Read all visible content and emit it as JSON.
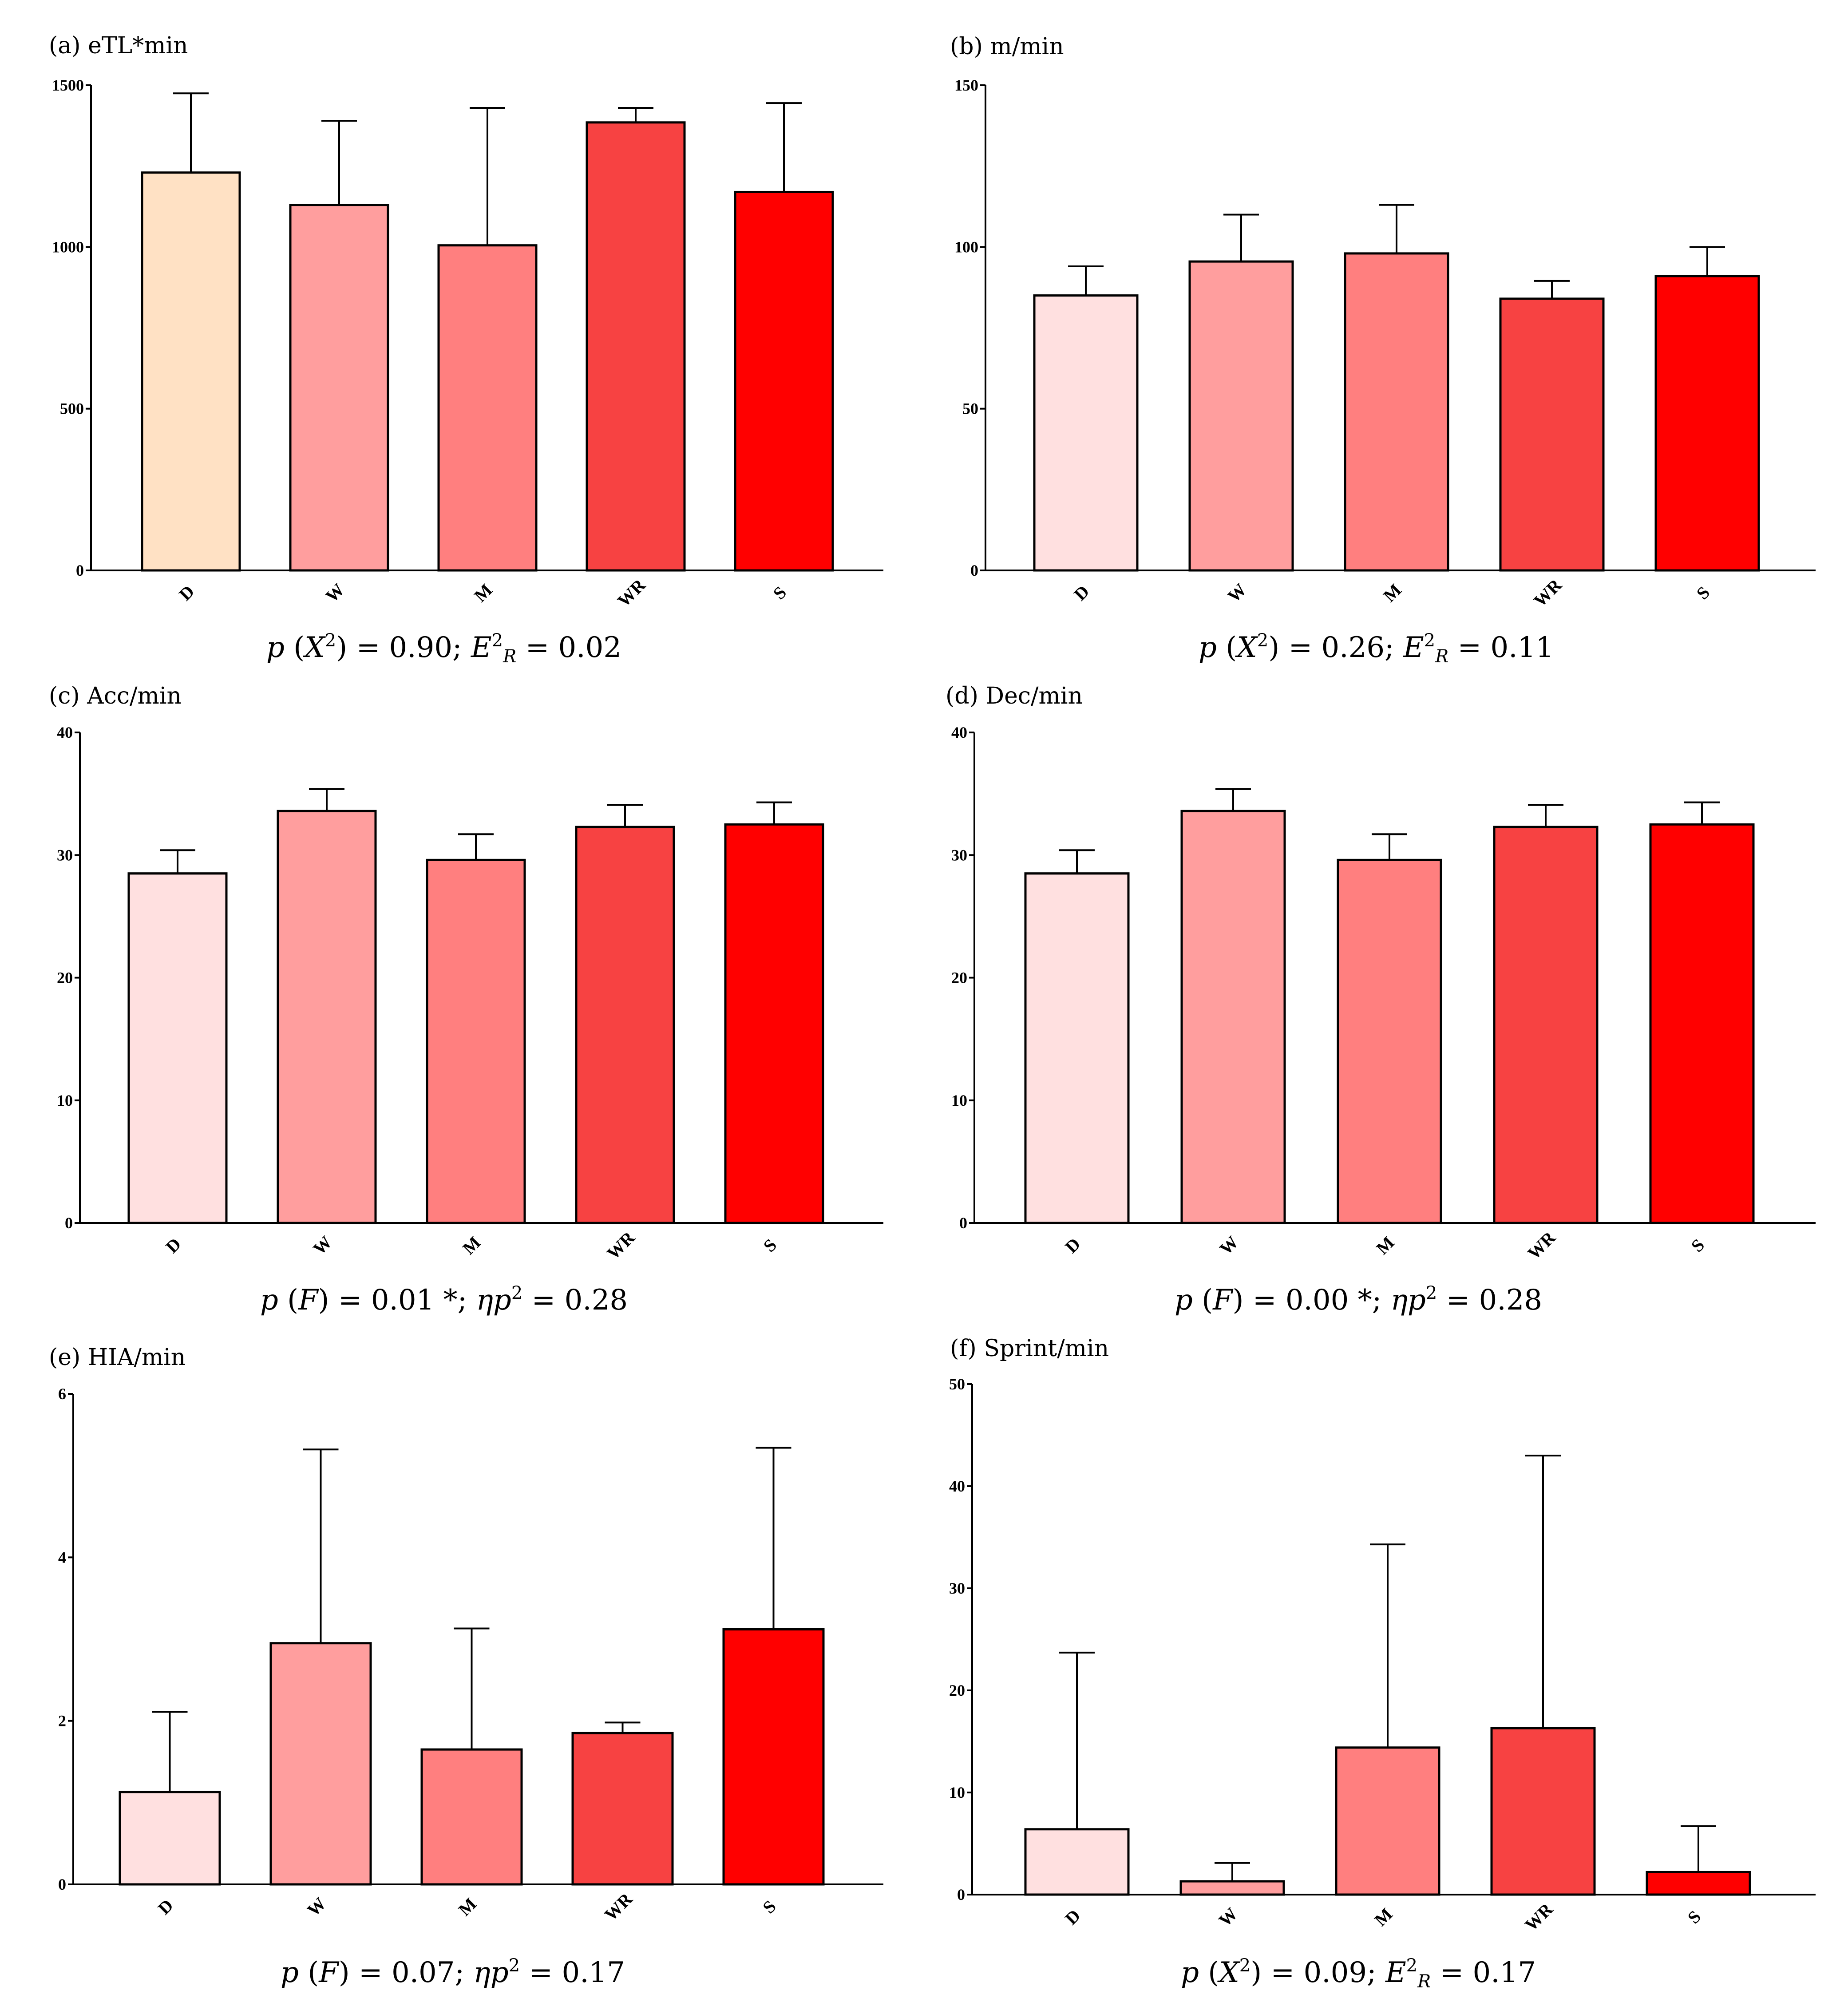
{
  "chart_data": [
    {
      "type": "bar",
      "title": "(a) eTL*min",
      "categories": [
        "D",
        "W",
        "M",
        "WR",
        "S"
      ],
      "values": [
        1230,
        1130,
        1005,
        1385,
        1170
      ],
      "errors": [
        245,
        260,
        425,
        45,
        275
      ],
      "ylim": [
        0,
        1500
      ],
      "yticks": [
        0,
        500,
        1000,
        1500
      ],
      "colors": [
        "#FFE1C4",
        "#FF9E9E",
        "#FF7F7F",
        "#F74242",
        "#FF0000"
      ],
      "stat": {
        "pre": "p",
        "mid": " (",
        "test": "X",
        "sup": "2",
        "post": ") = 0.90; ",
        "eff": "E",
        "effsup": "2",
        "effsub": "R",
        "tail": " = 0.02"
      }
    },
    {
      "type": "bar",
      "title": "(b) m/min",
      "categories": [
        "D",
        "W",
        "M",
        "WR",
        "S"
      ],
      "values": [
        85,
        95.5,
        98,
        84,
        91
      ],
      "errors": [
        9,
        14.5,
        15,
        5.5,
        9
      ],
      "ylim": [
        0,
        150
      ],
      "yticks": [
        0,
        50,
        100,
        150
      ],
      "colors": [
        "#FFE0E0",
        "#FF9E9E",
        "#FF7F7F",
        "#F74242",
        "#FF0000"
      ],
      "stat": {
        "pre": "p",
        "mid": " (",
        "test": "X",
        "sup": "2",
        "post": ") = 0.26; ",
        "eff": "E",
        "effsup": "2",
        "effsub": "R",
        "tail": " = 0.11"
      }
    },
    {
      "type": "bar",
      "title": "(c) Acc/min",
      "categories": [
        "D",
        "W",
        "M",
        "WR",
        "S"
      ],
      "values": [
        28.5,
        33.6,
        29.6,
        32.3,
        32.5
      ],
      "errors": [
        1.9,
        1.8,
        2.1,
        1.8,
        1.8
      ],
      "ylim": [
        0,
        40
      ],
      "yticks": [
        0,
        10,
        20,
        30,
        40
      ],
      "colors": [
        "#FFE0E0",
        "#FF9E9E",
        "#FF7F7F",
        "#F74242",
        "#FF0000"
      ],
      "stat": {
        "pre": "p",
        "mid": " (",
        "test": "F",
        "sup": "",
        "post": ") = 0.01 *; ",
        "eff": "ηp",
        "effsup": "2",
        "effsub": "",
        "tail": " = 0.28"
      }
    },
    {
      "type": "bar",
      "title": "(d) Dec/min",
      "categories": [
        "D",
        "W",
        "M",
        "WR",
        "S"
      ],
      "values": [
        28.5,
        33.6,
        29.6,
        32.3,
        32.5
      ],
      "errors": [
        1.9,
        1.8,
        2.1,
        1.8,
        1.8
      ],
      "ylim": [
        0,
        40
      ],
      "yticks": [
        0,
        10,
        20,
        30,
        40
      ],
      "colors": [
        "#FFE0E0",
        "#FF9E9E",
        "#FF7F7F",
        "#F74242",
        "#FF0000"
      ],
      "stat": {
        "pre": "p",
        "mid": " (",
        "test": "F",
        "sup": "",
        "post": ") = 0.00 *; ",
        "eff": "ηp",
        "effsup": "2",
        "effsub": "",
        "tail": " = 0.28"
      }
    },
    {
      "type": "bar",
      "title": "(e) HIA/min",
      "categories": [
        "D",
        "W",
        "M",
        "WR",
        "S"
      ],
      "values": [
        1.13,
        2.95,
        1.65,
        1.85,
        3.12
      ],
      "errors": [
        0.98,
        2.37,
        1.48,
        0.13,
        2.22
      ],
      "ylim": [
        0,
        6
      ],
      "yticks": [
        0,
        2,
        4,
        6
      ],
      "colors": [
        "#FFE0E0",
        "#FF9E9E",
        "#FF7F7F",
        "#F74242",
        "#FF0000"
      ],
      "stat": {
        "pre": "p",
        "mid": " (",
        "test": "F",
        "sup": "",
        "post": ") = 0.07; ",
        "eff": "ηp",
        "effsup": "2",
        "effsub": "",
        "tail": " = 0.17"
      }
    },
    {
      "type": "bar",
      "title": "(f) Sprint/min",
      "categories": [
        "D",
        "W",
        "M",
        "WR",
        "S"
      ],
      "values": [
        6.4,
        1.3,
        14.4,
        16.3,
        2.2
      ],
      "errors": [
        17.3,
        1.8,
        19.9,
        26.7,
        4.5
      ],
      "ylim": [
        0,
        50
      ],
      "yticks": [
        0,
        10,
        20,
        30,
        40,
        50
      ],
      "colors": [
        "#FFE0E0",
        "#FF9E9E",
        "#FF7F7F",
        "#F74242",
        "#FF0000"
      ],
      "stat": {
        "pre": "p",
        "mid": " (",
        "test": "X",
        "sup": "2",
        "post": ") = 0.09; ",
        "eff": "E",
        "effsup": "2",
        "effsub": "R",
        "tail": " = 0.17"
      }
    }
  ]
}
